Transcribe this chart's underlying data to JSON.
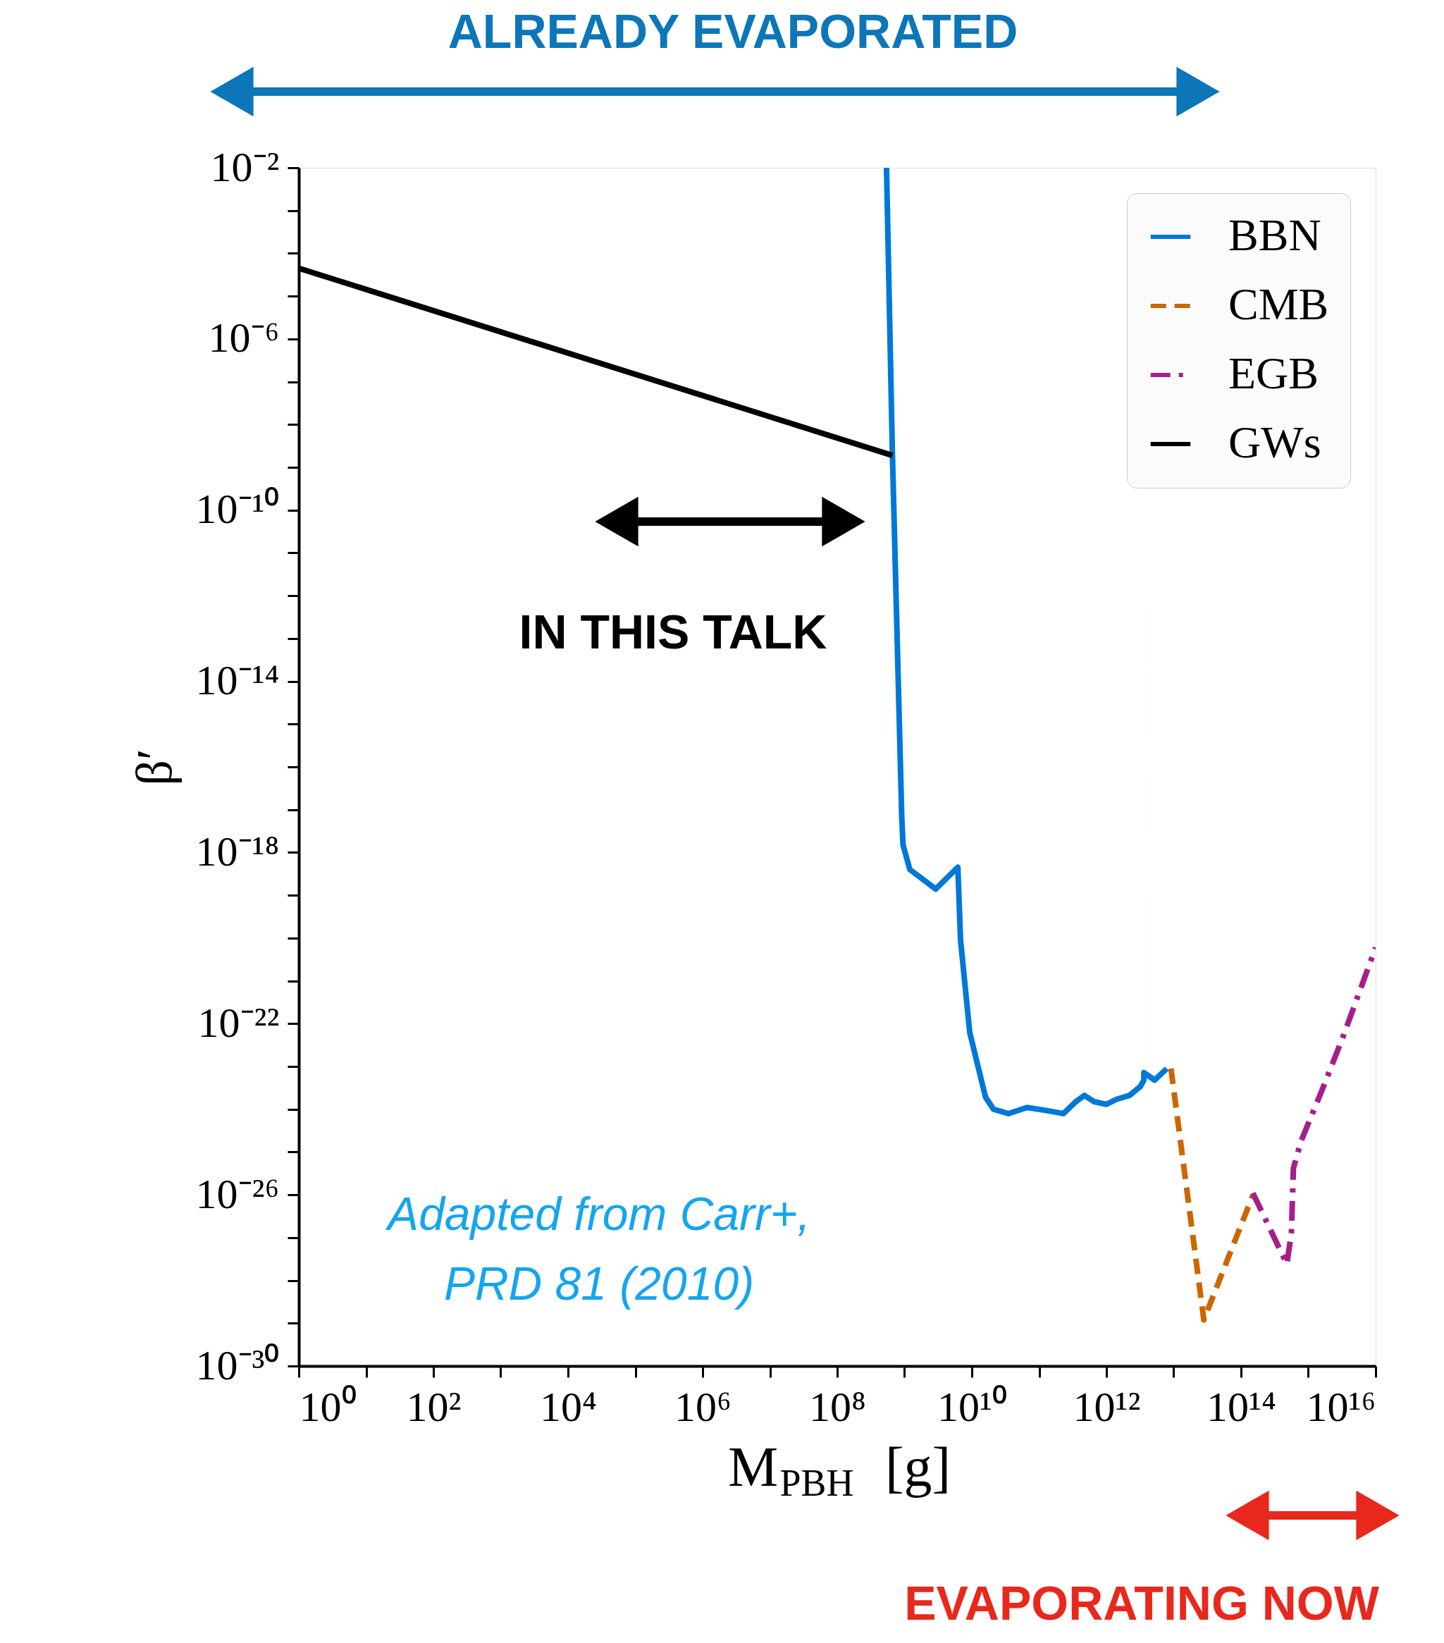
{
  "chart_data": {
    "type": "line",
    "xlabel": "M$_{PBH}$ [g]",
    "ylabel": "β′",
    "log": "xy",
    "grid": false,
    "legend": "top right",
    "xlim": [
      1,
      1e+16
    ],
    "ylim": [
      1e-30,
      0.01
    ],
    "xticks": [
      {
        "value": 1,
        "label": "10⁰"
      },
      {
        "value": 10,
        "label": null
      },
      {
        "value": 100,
        "label": "10²"
      },
      {
        "value": 1000,
        "label": null
      },
      {
        "value": 10000.0,
        "label": "10⁴"
      },
      {
        "value": 100000.0,
        "label": null
      },
      {
        "value": 1000000.0,
        "label": "10⁶"
      },
      {
        "value": 10000000.0,
        "label": null
      },
      {
        "value": 100000000.0,
        "label": "10⁸"
      },
      {
        "value": 1000000000.0,
        "label": null
      },
      {
        "value": 10000000000.0,
        "label": "10¹⁰"
      },
      {
        "value": 100000000000.0,
        "label": null
      },
      {
        "value": 1000000000000.0,
        "label": "10¹²"
      },
      {
        "value": 10000000000000.0,
        "label": null
      },
      {
        "value": 100000000000000.0,
        "label": "10¹⁴"
      },
      {
        "value": 1000000000000000.0,
        "label": null
      },
      {
        "value": 1e+16,
        "label": "10¹⁶"
      }
    ],
    "yticks": [
      {
        "value": 1e-30,
        "label": "10⁻³⁰"
      },
      {
        "value": 1e-29,
        "label": null
      },
      {
        "value": 1e-28,
        "label": null
      },
      {
        "value": 1e-27,
        "label": null
      },
      {
        "value": 1e-26,
        "label": "10⁻²⁶"
      },
      {
        "value": 1e-25,
        "label": null
      },
      {
        "value": 1e-24,
        "label": null
      },
      {
        "value": 1e-23,
        "label": null
      },
      {
        "value": 1e-22,
        "label": "10⁻²²"
      },
      {
        "value": 1e-21,
        "label": null
      },
      {
        "value": 1e-20,
        "label": null
      },
      {
        "value": 1e-19,
        "label": null
      },
      {
        "value": 1e-18,
        "label": "10⁻¹⁸"
      },
      {
        "value": 1e-17,
        "label": null
      },
      {
        "value": 1e-16,
        "label": null
      },
      {
        "value": 1e-15,
        "label": null
      },
      {
        "value": 1e-14,
        "label": "10⁻¹⁴"
      },
      {
        "value": 1e-13,
        "label": null
      },
      {
        "value": 1e-12,
        "label": null
      },
      {
        "value": 1e-11,
        "label": null
      },
      {
        "value": 1e-10,
        "label": "10⁻¹⁰"
      },
      {
        "value": 1e-09,
        "label": null
      },
      {
        "value": 1e-08,
        "label": null
      },
      {
        "value": 1e-07,
        "label": null
      },
      {
        "value": 1e-06,
        "label": "10⁻⁶"
      },
      {
        "value": 1e-05,
        "label": null
      },
      {
        "value": 0.0001,
        "label": null
      },
      {
        "value": 0.001,
        "label": null
      },
      {
        "value": 0.01,
        "label": "10⁻²"
      }
    ],
    "series": [
      {
        "name": "BBN",
        "color": "#0078d7",
        "line_style": "solid",
        "x": [
          540000000.0,
          660000000.0,
          910000000.0,
          950000000.0,
          1200000000.0,
          2900000000.0,
          6200000000.0,
          6800000000.0,
          9300000000.0,
          13000000000.0,
          16000000000.0,
          21000000000.0,
          35000000000.0,
          66000000000.0,
          130000000000.0,
          230000000000.0,
          350000000000.0,
          470000000000.0,
          660000000000.0,
          1000000000000.0,
          1400000000000.0,
          2200000000000.0,
          3200000000000.0,
          3600000000000.0,
          3600000000000.0,
          5200000000000.0,
          7900000000000.0
        ],
        "values": [
          0.01,
          2.2e-09,
          6.5e-18,
          1.5e-18,
          4e-19,
          1.4e-19,
          4.5e-19,
          8.9e-21,
          6.3e-23,
          7.2e-24,
          1.9e-24,
          1e-24,
          7.9e-25,
          1.1e-24,
          9.3e-25,
          7.9e-25,
          1.5e-24,
          2.1e-24,
          1.5e-24,
          1.3e-24,
          1.7e-24,
          2.1e-24,
          3.4e-24,
          4.8e-24,
          7.2e-24,
          4.8e-24,
          8.9e-24
        ]
      },
      {
        "name": "CMB",
        "color": "#cc6600",
        "line_style": "dashed",
        "x": [
          9100000000000.0,
          28000000000000.0,
          150000000000000.0
        ],
        "values": [
          8.9e-24,
          1.2e-29,
          9.8e-27
        ]
      },
      {
        "name": "EGB",
        "color": "#a61e8d",
        "line_style": "dashdot",
        "x": [
          150000000000000.0,
          480000000000000.0,
          560000000000000.0,
          600000000000000.0,
          780000000000000.0,
          1600000000000000.0,
          3300000000000000.0,
          1e+16
        ],
        "values": [
          1.1e-26,
          2.4e-28,
          1.3e-27,
          4.2e-26,
          1.8e-25,
          2.8e-24,
          5.1e-23,
          6e-21
        ]
      },
      {
        "name": "GWs",
        "color": "#000000",
        "line_style": "solid",
        "x": [
          1,
          660000000.0
        ],
        "values": [
          4.5e-05,
          1.9e-09
        ]
      }
    ],
    "annotations": [
      "ALREADY EVAPORATED",
      "IN THIS TALK",
      "EVAPORATING NOW",
      "Adapted from Carr+,\nPRD 81 (2010)"
    ]
  }
}
